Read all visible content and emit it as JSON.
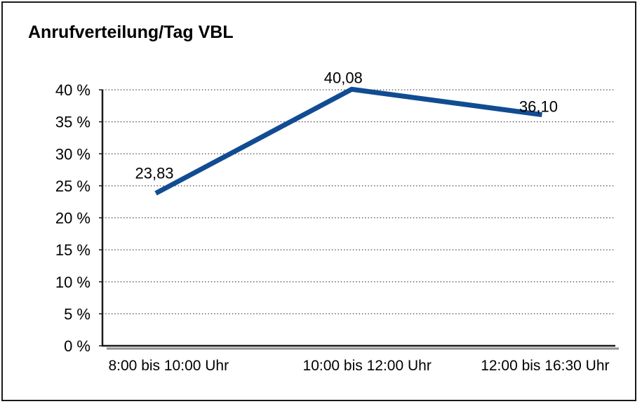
{
  "chart_data": {
    "type": "line",
    "title": "Anrufverteilung/Tag VBL",
    "categories": [
      "8:00 bis 10:00 Uhr",
      "10:00 bis 12:00 Uhr",
      "12:00 bis 16:30 Uhr"
    ],
    "values": [
      23.83,
      40.08,
      36.1
    ],
    "data_labels": [
      "23,83",
      "40,08",
      "36,10"
    ],
    "xlabel": "",
    "ylabel": "",
    "ylim": [
      0,
      40
    ],
    "ytick_step": 5,
    "ytick_labels": [
      "0 %",
      "5 %",
      "10 %",
      "15 %",
      "20 %",
      "25 %",
      "30 %",
      "35 %",
      "40 %"
    ],
    "grid": "horizontal-dotted",
    "legend_position": "none",
    "line_color": "#114c93",
    "axis_color": "#1a1a1a",
    "axis_shadow_color": "#929292",
    "grid_color": "#4a4a4a",
    "text_color": "#000000",
    "background_color": "#ffffff"
  }
}
